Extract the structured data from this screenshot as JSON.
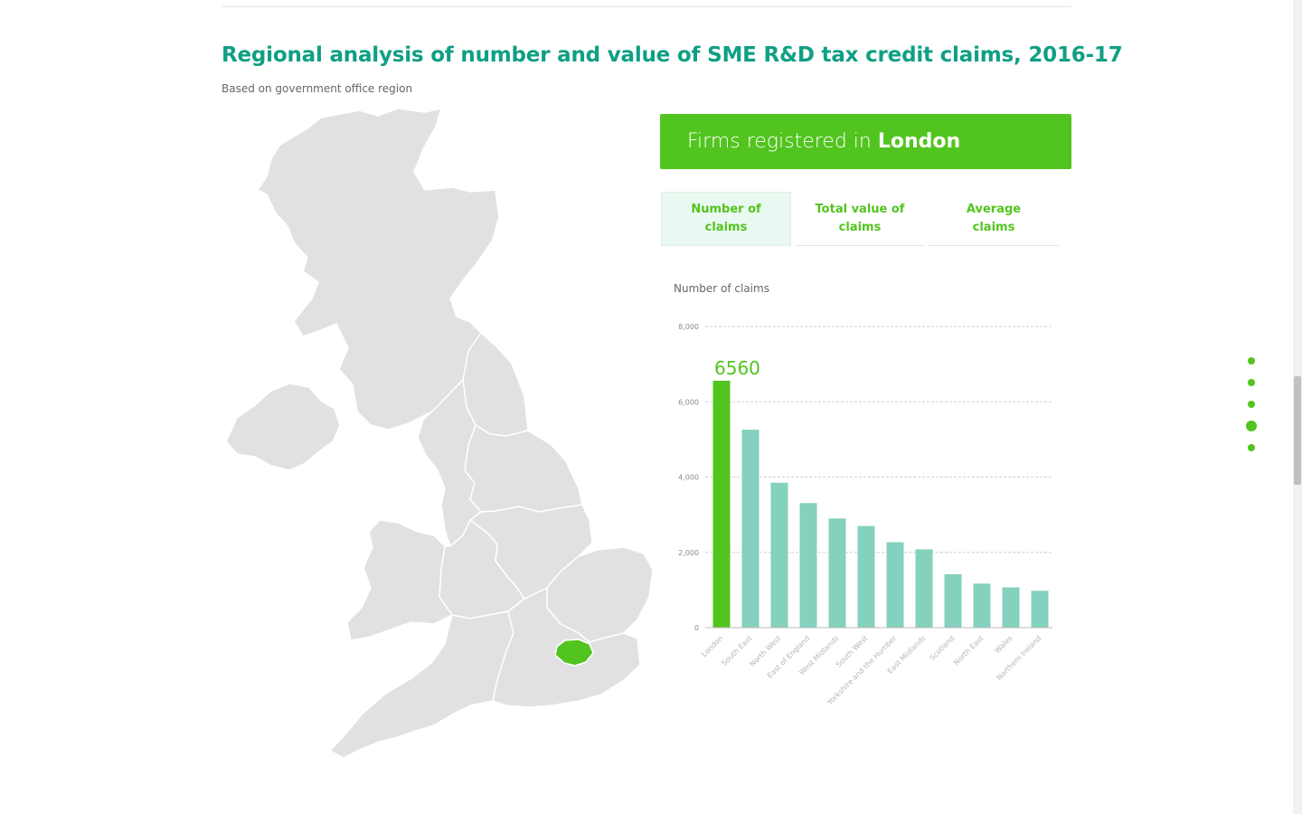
{
  "title": "Regional analysis of number and value of SME R&D tax credit claims, 2016-17",
  "subtitle": "Based on government office region",
  "banner": {
    "prefix": "Firms registered in",
    "region": "London"
  },
  "tabs": [
    {
      "line1": "Number of",
      "line2": "claims"
    },
    {
      "line1": "Total value of",
      "line2": "claims"
    },
    {
      "line1": "Average",
      "line2": "claims"
    }
  ],
  "colors": {
    "title": "#0f9f84",
    "highlight": "#52c41f",
    "bar": "#84d1bd",
    "map_land": "#e1e1e3"
  },
  "chart_data": {
    "type": "bar",
    "title": "Number of claims",
    "categories": [
      "London",
      "South East",
      "North West",
      "East of England",
      "West Midlands",
      "South West",
      "Yorkshire and the Humber",
      "East Midlands",
      "Scotland",
      "North East",
      "Wales",
      "Northern Ireland"
    ],
    "values": [
      6560,
      5260,
      3850,
      3310,
      2900,
      2700,
      2270,
      2080,
      1420,
      1170,
      1070,
      980
    ],
    "highlight_index": 0,
    "highlight_label": "6560",
    "ylim": [
      0,
      8000
    ],
    "yticks": [
      0,
      2000,
      4000,
      6000,
      8000
    ],
    "ytick_labels": [
      "0",
      "2,000",
      "4,000",
      "6,000",
      "8,000"
    ],
    "grid": true
  },
  "page_nav": {
    "dots": 5,
    "active": 3
  }
}
